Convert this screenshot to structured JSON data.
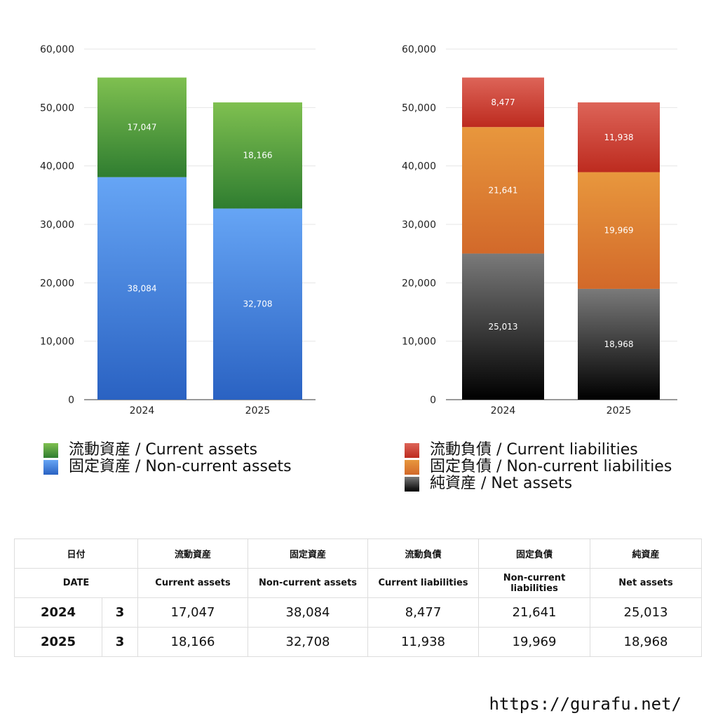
{
  "chart_data": [
    {
      "type": "bar",
      "stacked": true,
      "categories": [
        "2024",
        "2025"
      ],
      "ylim": [
        0,
        60000
      ],
      "yticks": [
        "0",
        "10,000",
        "20,000",
        "30,000",
        "40,000",
        "50,000",
        "60,000"
      ],
      "grid": true,
      "legend_position": "bottom",
      "series": [
        {
          "name": "固定資産 / Non-current assets",
          "values": [
            38084,
            32708
          ],
          "labels": [
            "38,084",
            "32,708"
          ],
          "color_top": "#66a5f5",
          "color_bottom": "#2a62c2"
        },
        {
          "name": "流動資産 / Current assets",
          "values": [
            17047,
            18166
          ],
          "labels": [
            "17,047",
            "18,166"
          ],
          "color_top": "#7fc050",
          "color_bottom": "#2f7d30"
        }
      ],
      "legend": [
        {
          "label": "流動資産 / Current assets",
          "color_top": "#7fc050",
          "color_bottom": "#2f7d30"
        },
        {
          "label": "固定資産 / Non-current assets",
          "color_top": "#66a5f5",
          "color_bottom": "#2a62c2"
        }
      ]
    },
    {
      "type": "bar",
      "stacked": true,
      "categories": [
        "2024",
        "2025"
      ],
      "ylim": [
        0,
        60000
      ],
      "yticks": [
        "0",
        "10,000",
        "20,000",
        "30,000",
        "40,000",
        "50,000",
        "60,000"
      ],
      "grid": true,
      "legend_position": "bottom",
      "series": [
        {
          "name": "純資産 / Net assets",
          "values": [
            25013,
            18968
          ],
          "labels": [
            "25,013",
            "18,968"
          ],
          "color_top": "#7a7a7a",
          "color_bottom": "#000000"
        },
        {
          "name": "固定負債 / Non-current liabilities",
          "values": [
            21641,
            19969
          ],
          "labels": [
            "21,641",
            "19,969"
          ],
          "color_top": "#e8973d",
          "color_bottom": "#d2692a"
        },
        {
          "name": "流動負債 / Current liabilities",
          "values": [
            8477,
            11938
          ],
          "labels": [
            "8,477",
            "11,938"
          ],
          "color_top": "#dd6458",
          "color_bottom": "#bd2b1f"
        }
      ],
      "legend": [
        {
          "label": "流動負債 / Current liabilities",
          "color_top": "#dd6458",
          "color_bottom": "#bd2b1f"
        },
        {
          "label": "固定負債 / Non-current liabilities",
          "color_top": "#e8973d",
          "color_bottom": "#d2692a"
        },
        {
          "label": "純資産 / Net assets",
          "color_top": "#7a7a7a",
          "color_bottom": "#000000"
        }
      ]
    }
  ],
  "table": {
    "header_jp": [
      "日付",
      "流動資産",
      "固定資産",
      "流動負債",
      "固定負債",
      "純資産"
    ],
    "header_en": [
      "DATE",
      "Current assets",
      "Non-current assets",
      "Current liabilities",
      "Non-current liabilities",
      "Net assets"
    ],
    "rows": [
      {
        "year": "2024",
        "month": "3",
        "values": [
          "17,047",
          "38,084",
          "8,477",
          "21,641",
          "25,013"
        ]
      },
      {
        "year": "2025",
        "month": "3",
        "values": [
          "18,166",
          "32,708",
          "11,938",
          "19,969",
          "18,968"
        ]
      }
    ]
  },
  "footer": {
    "url": "https://gurafu.net/"
  }
}
